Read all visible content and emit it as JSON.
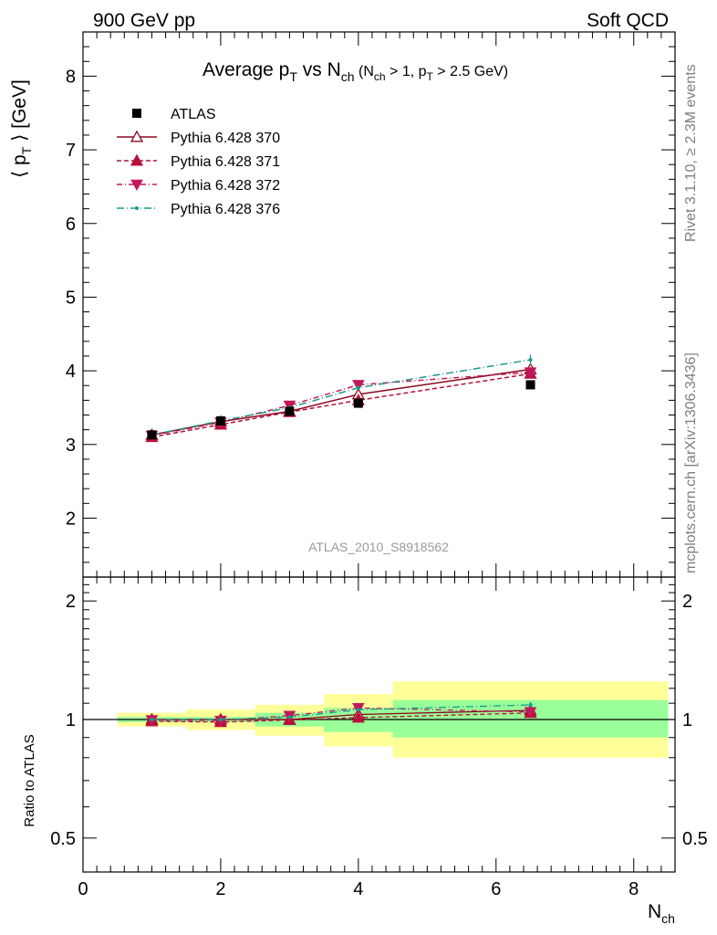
{
  "header": {
    "left": "900 GeV pp",
    "right": "Soft QCD"
  },
  "side_text": {
    "upper": "Rivet 3.1.10, ≥ 2.3M events",
    "lower": "mcplots.cern.ch [arXiv:1306.3436]"
  },
  "watermark": "ATLAS_2010_S8918562",
  "chart_data": {
    "type": "line",
    "title": {
      "main": "Average p",
      "main_sub": "T",
      "mid": " vs N",
      "mid_sub": "ch",
      "cond_a": " (N",
      "cond_a_sub": "ch",
      "cond_b": " > 1, p",
      "cond_b_sub": "T",
      "cond_c": " > 2.5 GeV)"
    },
    "ylabel_main": {
      "pre": "⟨ p",
      "sub": "T",
      "post": " ⟩ [GeV]"
    },
    "ylabel_ratio": "Ratio to ATLAS",
    "xlabel": {
      "main": "N",
      "sub": "ch"
    },
    "xlim": [
      0,
      8.6
    ],
    "ylim_main": [
      1.2,
      8.6
    ],
    "ylim_ratio": [
      0.41,
      2.3
    ],
    "ratio_log_scale": true,
    "x_ticks": [
      "0",
      "2",
      "4",
      "6",
      "8"
    ],
    "y_ticks_main": [
      "2",
      "3",
      "4",
      "5",
      "6",
      "7",
      "8"
    ],
    "y_ticks_ratio": [
      "0.5",
      "1",
      "2"
    ],
    "x": [
      1,
      2,
      3,
      4,
      6.5
    ],
    "x_bins": [
      [
        0.5,
        1.5
      ],
      [
        1.5,
        2.5
      ],
      [
        2.5,
        3.5
      ],
      [
        3.5,
        4.5
      ],
      [
        4.5,
        8.5
      ]
    ],
    "data": {
      "name": "ATLAS",
      "values": [
        3.13,
        3.32,
        3.45,
        3.56,
        3.81
      ]
    },
    "ratio_bands": {
      "stat": [
        [
          0.985,
          1.015
        ],
        [
          0.985,
          1.015
        ],
        [
          0.96,
          1.04
        ],
        [
          0.93,
          1.07
        ],
        [
          0.9,
          1.12
        ]
      ],
      "total": [
        [
          0.96,
          1.04
        ],
        [
          0.94,
          1.06
        ],
        [
          0.91,
          1.09
        ],
        [
          0.855,
          1.16
        ],
        [
          0.8,
          1.25
        ]
      ],
      "stat_color": "#99ff99",
      "total_color": "#ffff99"
    },
    "series": [
      {
        "name": "Pythia 6.428 370",
        "color": "#8b0a1e",
        "dash": "",
        "marker": "triangle-up-open",
        "values": [
          3.13,
          3.31,
          3.45,
          3.68,
          4.02
        ],
        "ratio": [
          1.0,
          1.0,
          1.0,
          1.03,
          1.055
        ],
        "errors": [
          0.02,
          0.02,
          0.02,
          0.03,
          0.06
        ]
      },
      {
        "name": "Pythia 6.428 371",
        "color": "#b8103a",
        "dash": "5,3",
        "marker": "triangle-up",
        "values": [
          3.1,
          3.27,
          3.44,
          3.6,
          3.96
        ],
        "ratio": [
          0.99,
          0.985,
          0.997,
          1.011,
          1.039
        ],
        "errors": [
          0.02,
          0.02,
          0.02,
          0.03,
          0.06
        ]
      },
      {
        "name": "Pythia 6.428 372",
        "color": "#c2185b",
        "dash": "6,3,1,3",
        "marker": "triangle-down",
        "values": [
          3.12,
          3.3,
          3.53,
          3.81,
          3.98
        ],
        "ratio": [
          0.997,
          0.994,
          1.023,
          1.07,
          1.045
        ],
        "errors": [
          0.02,
          0.02,
          0.02,
          0.03,
          0.06
        ]
      },
      {
        "name": "Pythia 6.428 376",
        "color": "#1a9b8a",
        "dash": "8,3,1,3",
        "marker": "dot",
        "values": [
          3.13,
          3.32,
          3.5,
          3.77,
          4.15
        ],
        "ratio": [
          1.0,
          1.0,
          1.014,
          1.059,
          1.089
        ],
        "errors": [
          0.02,
          0.02,
          0.02,
          0.03,
          0.07
        ]
      }
    ]
  }
}
